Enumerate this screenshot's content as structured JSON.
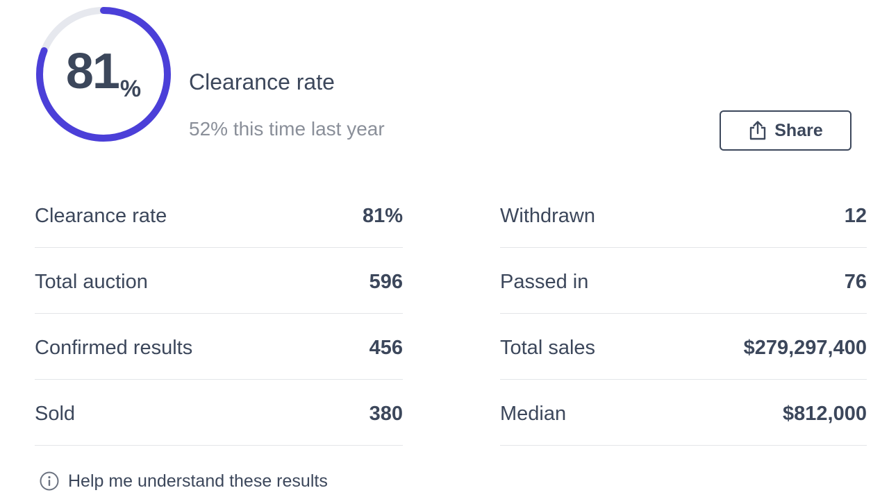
{
  "ring": {
    "value": "81",
    "unit": "%",
    "fill_fraction": 0.81,
    "track_color": "#e6e8ee",
    "fill_color": "#4b3fd8"
  },
  "headline": "Clearance rate",
  "subline": "52% this time last year",
  "share_button": {
    "label": "Share",
    "icon": "share-icon"
  },
  "stats_left": [
    {
      "label": "Clearance rate",
      "value": "81%"
    },
    {
      "label": "Total auction",
      "value": "596"
    },
    {
      "label": "Confirmed results",
      "value": "456"
    },
    {
      "label": "Sold",
      "value": "380"
    }
  ],
  "stats_right": [
    {
      "label": "Withdrawn",
      "value": "12"
    },
    {
      "label": "Passed in",
      "value": "76"
    },
    {
      "label": "Total sales",
      "value": "$279,297,400"
    },
    {
      "label": "Median",
      "value": "$812,000"
    }
  ],
  "help_link": {
    "label": "Help me understand these results",
    "icon": "info-icon"
  }
}
